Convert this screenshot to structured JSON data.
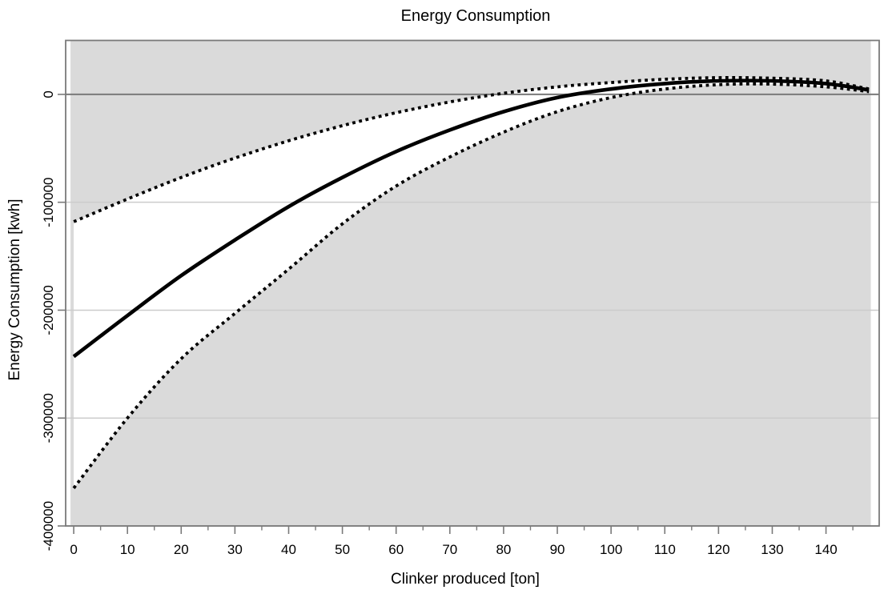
{
  "page": {
    "background": "#ffffff"
  },
  "chart_data": {
    "type": "line",
    "title": "Energy Consumption",
    "xlabel": "Clinker produced [ton]",
    "ylabel": "Energy Consumption [kwh]",
    "xlim": [
      -1.5,
      149.9
    ],
    "ylim": [
      -400000,
      50000
    ],
    "x_major_ticks": [
      0,
      10,
      20,
      30,
      40,
      50,
      60,
      70,
      80,
      90,
      100,
      110,
      120,
      130,
      140
    ],
    "x_minor_ticks": [
      5,
      15,
      25,
      35,
      45,
      55,
      65,
      75,
      85,
      95,
      105,
      115,
      125,
      135,
      145
    ],
    "y_ticks": [
      0,
      -100000,
      -200000,
      -300000,
      -400000
    ],
    "grid": "horizontal-only",
    "legend": "none",
    "zero_reference_line": true,
    "band_note": "region between dotted confidence curves is white; outside region is shaded gray",
    "x": [
      0,
      10,
      20,
      30,
      40,
      50,
      60,
      70,
      80,
      90,
      100,
      110,
      120,
      130,
      140,
      148
    ],
    "series": [
      {
        "name": "mean fit",
        "style": "solid",
        "values": [
          -243000,
          -205000,
          -168000,
          -135000,
          -104000,
          -77000,
          -53000,
          -33000,
          -16000,
          -3000,
          5000,
          10000,
          12500,
          12500,
          10000,
          4000
        ]
      },
      {
        "name": "upper confidence limit",
        "style": "dotted",
        "values": [
          -118000,
          -97000,
          -77000,
          -59000,
          -43000,
          -29000,
          -17000,
          -7000,
          1000,
          7000,
          11000,
          14000,
          15500,
          15000,
          12500,
          5000
        ]
      },
      {
        "name": "lower confidence limit",
        "style": "dotted",
        "values": [
          -365000,
          -300000,
          -245000,
          -203000,
          -162000,
          -120000,
          -85000,
          -58000,
          -35000,
          -16000,
          -3000,
          5000,
          9000,
          9500,
          7000,
          2500
        ]
      }
    ],
    "colors": {
      "curve": "#000000",
      "band_inside": "#ffffff",
      "band_outside": "#dadada",
      "gridline": "#cccccc",
      "zero_line": "#7a7a7a",
      "axis": "#7a7a7a",
      "text": "#000000"
    }
  }
}
